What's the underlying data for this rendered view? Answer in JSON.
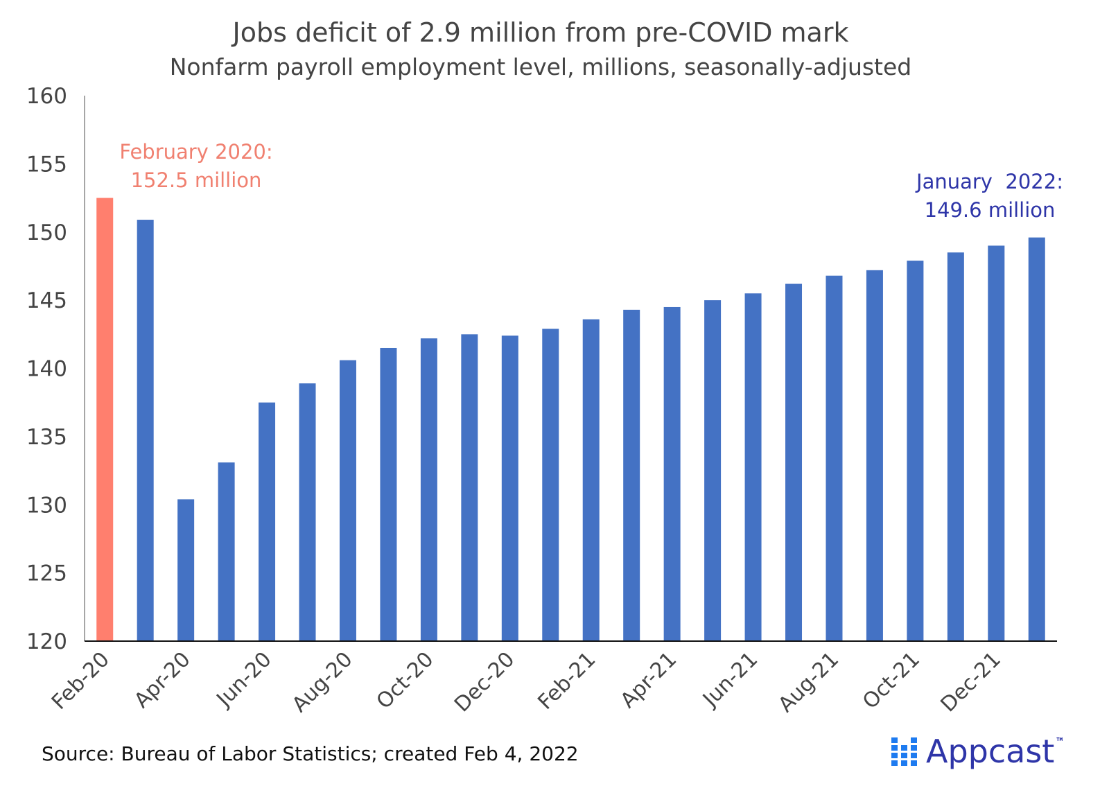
{
  "chart_data": {
    "type": "bar",
    "title": "Jobs deficit of 2.9 million from pre-COVID mark",
    "subtitle": "Nonfarm payroll employment level, millions, seasonally-adjusted",
    "xlabel": "",
    "ylabel": "",
    "ylim": [
      120,
      160
    ],
    "yticks": [
      "120",
      "125",
      "130",
      "135",
      "140",
      "145",
      "150",
      "155",
      "160"
    ],
    "grid": false,
    "categories": [
      "Feb-20",
      "Mar-20",
      "Apr-20",
      "May-20",
      "Jun-20",
      "Jul-20",
      "Aug-20",
      "Sep-20",
      "Oct-20",
      "Nov-20",
      "Dec-20",
      "Jan-21",
      "Feb-21",
      "Mar-21",
      "Apr-21",
      "May-21",
      "Jun-21",
      "Jul-21",
      "Aug-21",
      "Sep-21",
      "Oct-21",
      "Nov-21",
      "Dec-21",
      "Jan-22"
    ],
    "xtick_labels": [
      "Feb-20",
      "Apr-20",
      "Jun-20",
      "Aug-20",
      "Oct-20",
      "Dec-20",
      "Feb-21",
      "Apr-21",
      "Jun-21",
      "Aug-21",
      "Oct-21",
      "Dec-21"
    ],
    "values": [
      152.5,
      150.9,
      130.4,
      133.1,
      137.5,
      138.9,
      140.6,
      141.5,
      142.2,
      142.5,
      142.4,
      142.9,
      143.6,
      144.3,
      144.5,
      145.0,
      145.5,
      146.2,
      146.8,
      147.2,
      147.9,
      148.5,
      149.0,
      149.6
    ],
    "colors": {
      "highlight": "#FF7F6E",
      "bar": "#4472C4",
      "annotation_left": "#F08070",
      "annotation_right": "#2E35A8",
      "text": "#444444"
    },
    "annotations": [
      {
        "lines": [
          "February 2020:",
          "152.5 million"
        ]
      },
      {
        "lines": [
          "January  2022:",
          "149.6 million"
        ]
      }
    ],
    "source": "Source: Bureau of Labor Statistics; created Feb 4, 2022"
  },
  "logo": {
    "text": "Appcast",
    "color": "#2E35A8",
    "dot_color": "#1E7BF0"
  }
}
